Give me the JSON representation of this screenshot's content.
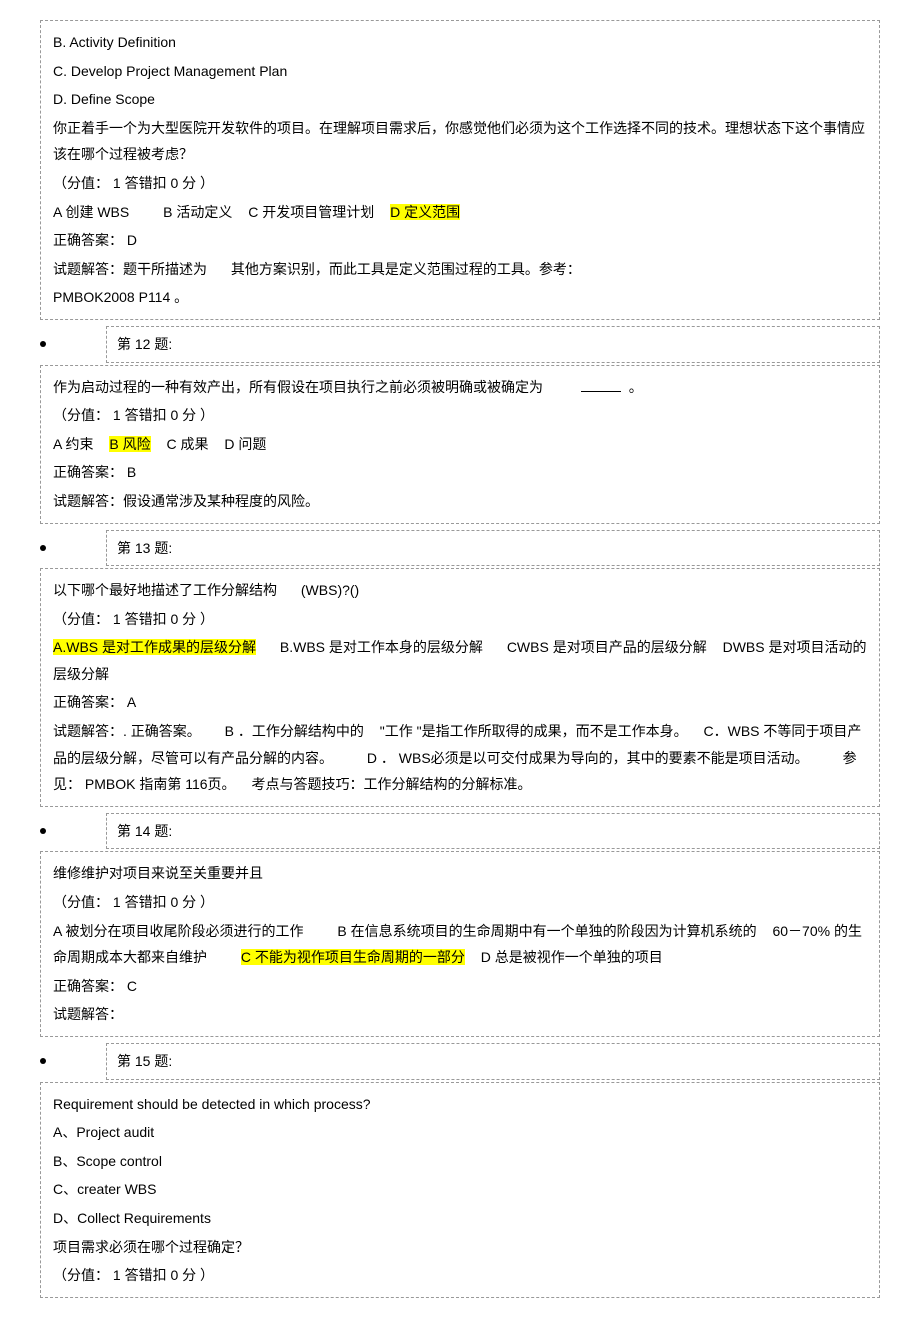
{
  "q11": {
    "optB": "B. Activity Definition",
    "optC": "C. Develop Project Management Plan",
    "optD": "D. Define Scope",
    "cn_text1": "你正着手一个为大型医院开发软件的项目。在理解项目需求后，你感觉他们必须为这个工作选择不同的技术。理想状态下这个事情应该在哪个过程被考虑？",
    "score": "（分值： 1 答错扣  0 分 ）",
    "cn_a": "A 创建  WBS",
    "cn_b": "B 活动定义",
    "cn_c": "C 开发项目管理计划",
    "cn_d": "D 定义范围",
    "answer": "正确答案： D",
    "explain1": "试题解答：题干所描述为",
    "explain2": "其他方案识别，而此工具是定义范围过程的工具。参考：",
    "explain3": "PMBOK2008 P114    。"
  },
  "q12": {
    "header": "第 12 题:",
    "text1": "作为启动过程的一种有效产出，所有假设在项目执行之前必须被明确或被确定为",
    "text2": "。",
    "score": "（分值： 1 答错扣  0 分 ）",
    "optA": "A 约束",
    "optB": "B 风险",
    "optC": "C 成果",
    "optD": "D 问题",
    "answer": "正确答案： B",
    "explain": "试题解答：假设通常涉及某种程度的风险。"
  },
  "q13": {
    "header": "第 13 题:",
    "text1": "以下哪个最好地描述了工作分解结构",
    "text2": "(WBS)?()",
    "score": "（分值： 1 答错扣  0 分 ）",
    "optA": "A.WBS  是对工作成果的层级分解",
    "optB": "B.WBS  是对工作本身的层级分解",
    "optC": "CWBS  是对项目产品的层级分解",
    "optD": "DWBS  是对项目活动的层级分解",
    "answer": "正确答案： A",
    "exp1": "试题解答：. 正确答案。",
    "exp2": "B ．工作分解结构中的",
    "exp3": "\"工作 \"是指工作所取得的成果，而不是工作本身。",
    "exp4": "C．WBS  不等同于项目产品的层级分解，尽管可以有产品分解的内容。",
    "exp5": "D ． WBS必须是以可交付成果为导向的，其中的要素不能是项目活动。",
    "exp6": "参见： PMBOK  指南第  116页。",
    "exp7": "考点与答题技巧：工作分解结构的分解标准。"
  },
  "q14": {
    "header": "第 14 题:",
    "text1": "维修维护对项目来说至关重要并且",
    "score": "（分值： 1 答错扣  0 分 ）",
    "optA": "A 被划分在项目收尾阶段必须进行的工作",
    "optB": "B 在信息系统项目的生命周期中有一个单独的阶段因为计算机系统的",
    "optB2": "60－70% 的生命周期成本大都来自维护",
    "optC": "C 不能为视作项目生命周期的一部分",
    "optD": "D 总是被视作一个单独的项目",
    "answer": "正确答案： C",
    "explain": "试题解答："
  },
  "q15": {
    "header": "第 15 题:",
    "en1": "Requirement should be detected in which process?",
    "enA": "A、Project audit",
    "enB": "B、Scope control",
    "enC": "C、creater WBS",
    "enD": "D、Collect Requirements",
    "cn1": "项目需求必须在哪个过程确定？",
    "score": "（分值： 1  答错扣  0 分 ）"
  }
}
